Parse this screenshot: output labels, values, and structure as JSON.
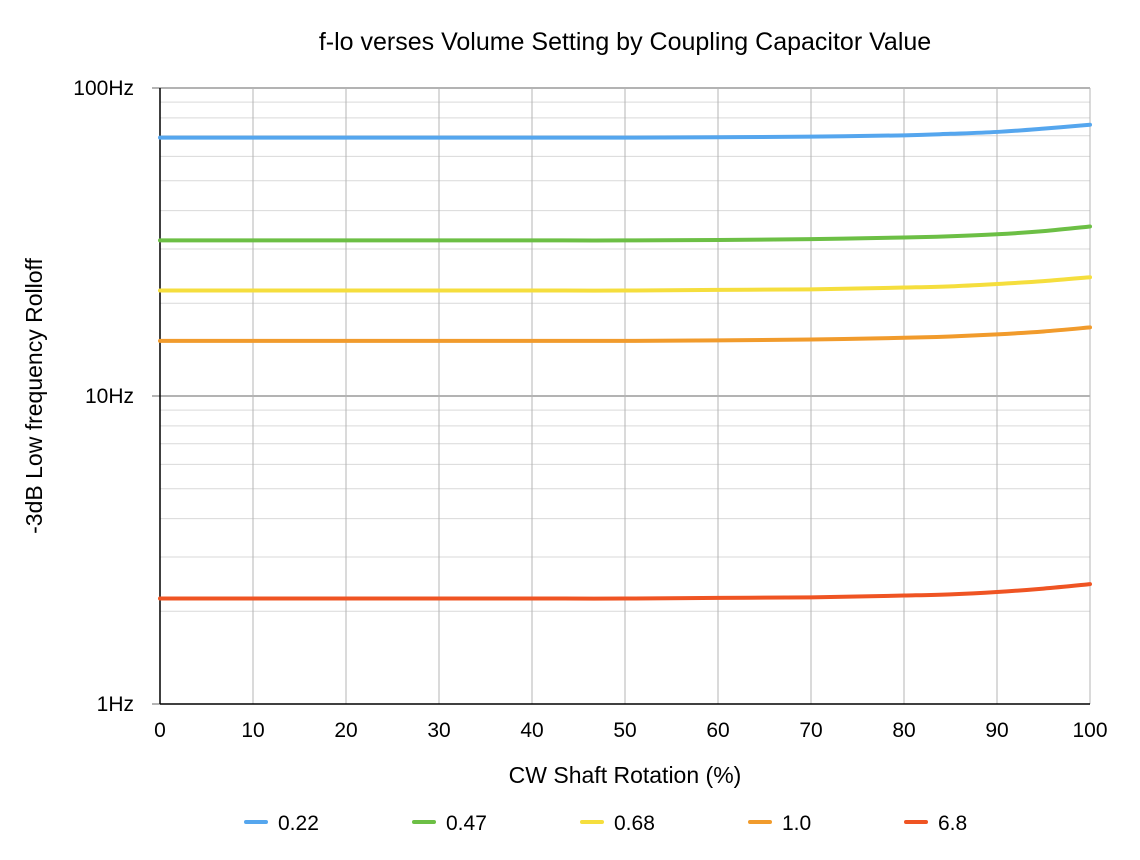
{
  "chart_data": {
    "type": "line",
    "title": "f-lo verses Volume Setting by Coupling Capacitor Value",
    "xlabel": "CW Shaft Rotation (%)",
    "ylabel": "-3dB Low frequency Rolloff",
    "xlim": [
      0,
      100
    ],
    "ylim": [
      1,
      100
    ],
    "yscale": "log",
    "grid": true,
    "legend_position": "bottom",
    "x_ticks": [
      0,
      10,
      20,
      30,
      40,
      50,
      60,
      70,
      80,
      90,
      100
    ],
    "x_tick_labels": [
      "0",
      "10",
      "20",
      "30",
      "40",
      "50",
      "60",
      "70",
      "80",
      "90",
      "100"
    ],
    "y_ticks": [
      1,
      10,
      100
    ],
    "y_tick_labels": [
      "1Hz",
      "10Hz",
      "100Hz"
    ],
    "x": [
      0,
      10,
      20,
      30,
      40,
      50,
      60,
      70,
      80,
      85,
      90,
      95,
      100
    ],
    "series": [
      {
        "name": "0.22",
        "color": "#55a6ee",
        "values": [
          69,
          69,
          69,
          69,
          69,
          69,
          69.2,
          69.5,
          70.2,
          71,
          72,
          73.8,
          76
        ]
      },
      {
        "name": "0.47",
        "color": "#6cbf45",
        "values": [
          32,
          32,
          32,
          32,
          32,
          32,
          32.1,
          32.3,
          32.7,
          33,
          33.5,
          34.3,
          35.5
        ]
      },
      {
        "name": "0.68",
        "color": "#f5de3d",
        "values": [
          22,
          22,
          22,
          22,
          22,
          22,
          22.1,
          22.2,
          22.5,
          22.7,
          23.1,
          23.6,
          24.3
        ]
      },
      {
        "name": "1.0",
        "color": "#f19b2c",
        "values": [
          15.1,
          15.1,
          15.1,
          15.1,
          15.1,
          15.1,
          15.15,
          15.25,
          15.45,
          15.6,
          15.85,
          16.2,
          16.7
        ]
      },
      {
        "name": "6.8",
        "color": "#ef5423",
        "values": [
          2.2,
          2.2,
          2.2,
          2.2,
          2.2,
          2.2,
          2.21,
          2.22,
          2.25,
          2.27,
          2.31,
          2.37,
          2.45
        ]
      }
    ]
  }
}
